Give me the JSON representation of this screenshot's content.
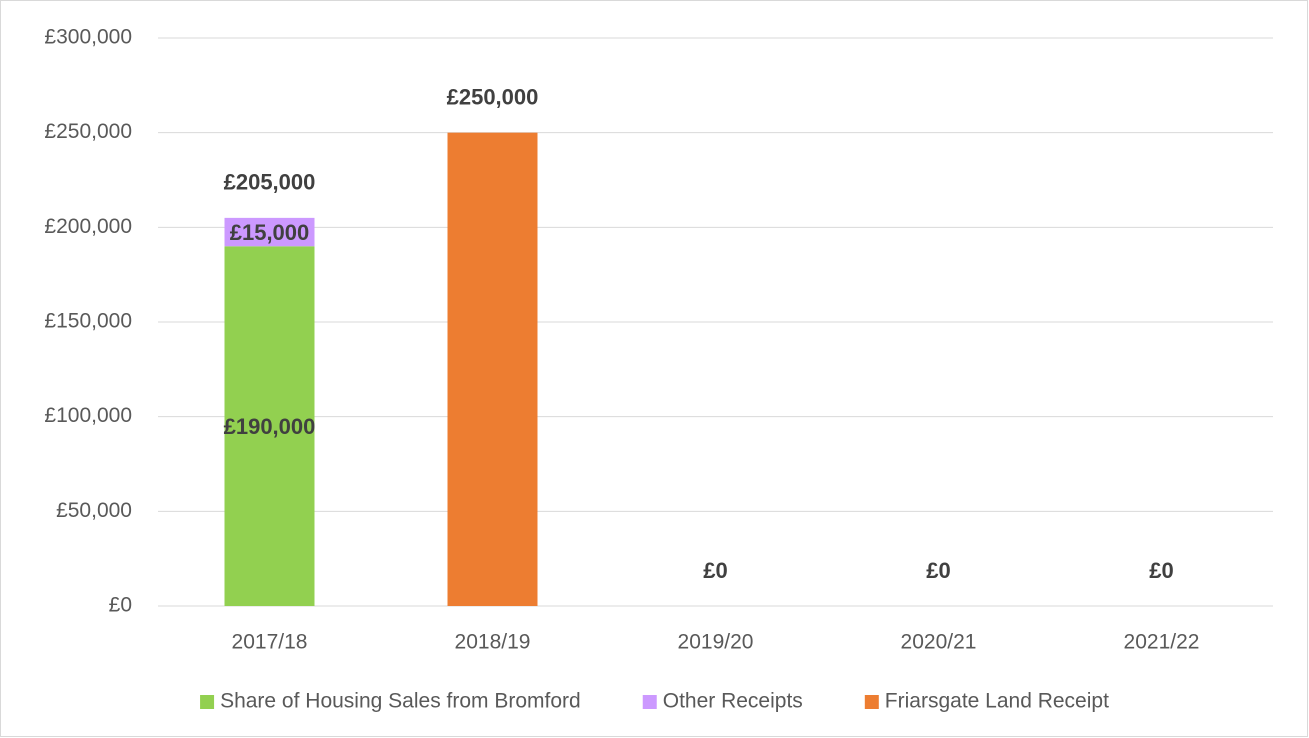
{
  "chart_data": {
    "type": "stacked_bar",
    "categories": [
      "2017/18",
      "2018/19",
      "2019/20",
      "2020/21",
      "2021/22"
    ],
    "series": [
      {
        "name": "Share of Housing Sales from Bromford",
        "color": "#92d050",
        "values": [
          190000,
          0,
          0,
          0,
          0
        ],
        "value_labels": [
          "£190,000",
          null,
          null,
          null,
          null
        ]
      },
      {
        "name": "Other Receipts",
        "color": "#cc99ff",
        "values": [
          15000,
          0,
          0,
          0,
          0
        ],
        "value_labels": [
          "£15,000",
          null,
          null,
          null,
          null
        ]
      },
      {
        "name": "Friarsgate Land Receipt",
        "color": "#ed7d31",
        "values": [
          0,
          250000,
          0,
          0,
          0
        ],
        "value_labels": [
          null,
          null,
          null,
          null,
          null
        ]
      }
    ],
    "totals": [
      205000,
      250000,
      0,
      0,
      0
    ],
    "total_labels": [
      "£205,000",
      "£250,000",
      "£0",
      "£0",
      "£0"
    ],
    "ylim": [
      0,
      300000
    ],
    "yticks": [
      {
        "value": 0,
        "label": "£0"
      },
      {
        "value": 50000,
        "label": "£50,000"
      },
      {
        "value": 100000,
        "label": "£100,000"
      },
      {
        "value": 150000,
        "label": "£150,000"
      },
      {
        "value": 200000,
        "label": "£200,000"
      },
      {
        "value": 250000,
        "label": "£250,000"
      },
      {
        "value": 300000,
        "label": "£300,000"
      }
    ],
    "grid": true,
    "legend": "bottom"
  }
}
